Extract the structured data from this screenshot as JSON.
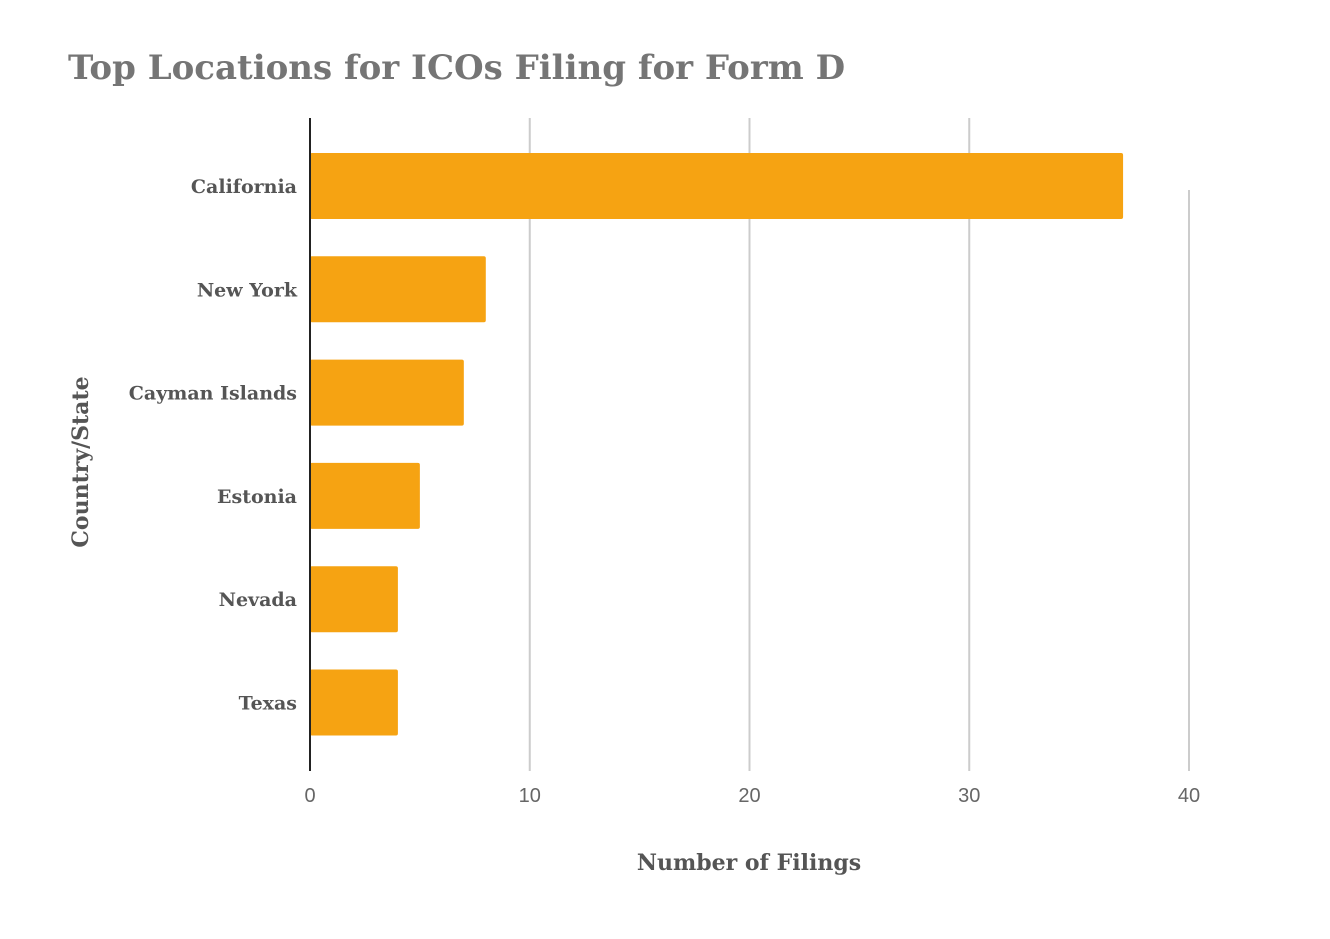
{
  "chart_data": {
    "type": "bar",
    "orientation": "horizontal",
    "title": "Top Locations for ICOs Filing for Form D",
    "xlabel": "Number of Filings",
    "ylabel": "Country/State",
    "categories": [
      "California",
      "New York",
      "Cayman Islands",
      "Estonia",
      "Nevada",
      "Texas"
    ],
    "values": [
      37,
      8,
      7,
      5,
      4,
      4
    ],
    "xlim": [
      0,
      40
    ],
    "xticks": [
      "0",
      "10",
      "20",
      "30",
      "40"
    ],
    "grid": true,
    "legend": "none",
    "bar_color": "#F6A312"
  }
}
